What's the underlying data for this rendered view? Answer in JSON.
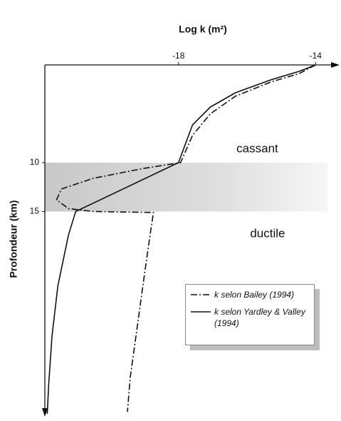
{
  "chart_data": {
    "type": "line",
    "title": "Log k (m²)",
    "y_label": "Profondeur (km)",
    "xlim": [
      -21.9,
      -13.3
    ],
    "xticks": [
      -18,
      -14
    ],
    "ylim": [
      0,
      36
    ],
    "yticks": [
      10,
      15
    ],
    "y_inverted": true,
    "band": [
      10,
      15
    ],
    "annotations": [
      {
        "text": "cassant",
        "x": -15.7,
        "y": 8.6
      },
      {
        "text": "ductile",
        "x": -15.4,
        "y": 17.3
      }
    ],
    "series": [
      {
        "name": "k selon Bailey (1994)",
        "color": "#111111",
        "dash": "dashdot",
        "x": [
          -14.0,
          -14.48,
          -15.31,
          -16.34,
          -17.07,
          -17.59,
          -17.94,
          -19.04,
          -20.49,
          -21.42,
          -21.56,
          -21.21,
          -20.49,
          -18.73,
          -18.83,
          -19.04,
          -19.24,
          -19.41,
          -19.49
        ],
        "values": [
          0,
          0.88,
          1.75,
          3.2,
          5.0,
          7.2,
          10,
          10.6,
          11.6,
          12.7,
          13.8,
          14.7,
          15,
          15.1,
          17.4,
          22.6,
          27.7,
          32,
          35.5
        ]
      },
      {
        "name": "k selon Yardley & Valley (1994)",
        "color": "#111111",
        "dash": "solid",
        "x": [
          -14.0,
          -14.48,
          -15.31,
          -16.34,
          -17.07,
          -17.59,
          -18.0,
          -21.0,
          -21.21,
          -21.52,
          -21.69,
          -21.79,
          -21.83
        ],
        "values": [
          0,
          0.66,
          1.53,
          2.85,
          4.31,
          6.13,
          10,
          15,
          17.4,
          22.6,
          27.7,
          32.8,
          35.7
        ]
      }
    ]
  }
}
